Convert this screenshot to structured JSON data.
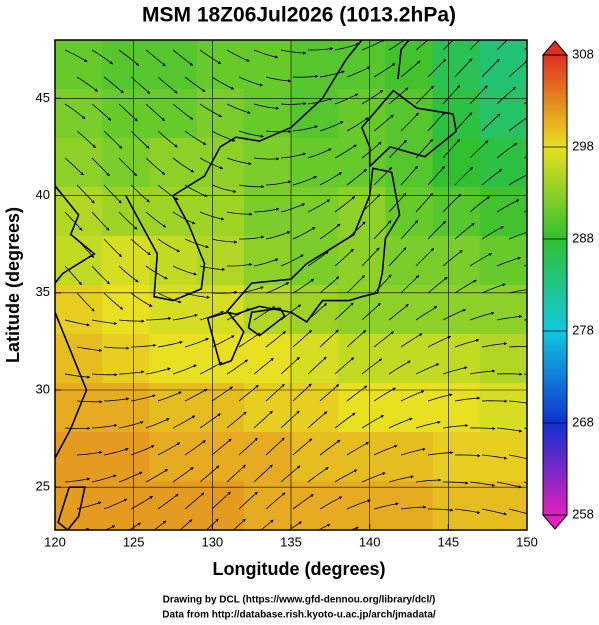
{
  "chart_data": {
    "type": "heatmap",
    "title": "MSM 18Z06Jul2026 (1013.2hPa)",
    "x_label": "Longitude (degrees)",
    "y_label": "Latitude  (degrees)",
    "xlim": [
      120,
      150
    ],
    "ylim": [
      22.8,
      48
    ],
    "xticks": [
      120,
      125,
      130,
      135,
      140,
      145,
      150
    ],
    "yticks": [
      25,
      30,
      35,
      40,
      45
    ],
    "grid": true,
    "field": [
      [
        291,
        290,
        290,
        291,
        291,
        290,
        290,
        289,
        286,
        284
      ],
      [
        292,
        291,
        291,
        292,
        291,
        290,
        291,
        290,
        287,
        285
      ],
      [
        293,
        292,
        293,
        293,
        292,
        291,
        291,
        290,
        288,
        287
      ],
      [
        295,
        294,
        294,
        294,
        292,
        292,
        293,
        291,
        290,
        289
      ],
      [
        296,
        297,
        296,
        295,
        293,
        292,
        293,
        292,
        292,
        291
      ],
      [
        299,
        298,
        297,
        297,
        295,
        294,
        293,
        293,
        293,
        293
      ],
      [
        300,
        299,
        298,
        298,
        298,
        297,
        296,
        296,
        296,
        295
      ],
      [
        301,
        301,
        300,
        300,
        299,
        299,
        298,
        298,
        298,
        297
      ],
      [
        302,
        302,
        301,
        301,
        301,
        300,
        300,
        300,
        299,
        299
      ],
      [
        302,
        302,
        302,
        302,
        301,
        301,
        301,
        301,
        300,
        300
      ]
    ],
    "colorbar": {
      "range": [
        258,
        308
      ],
      "ticks": [
        258,
        268,
        278,
        288,
        298,
        308
      ],
      "colors": [
        "#e020c0",
        "#1030d0",
        "#10c8e0",
        "#30c030",
        "#e8e020",
        "#e03020"
      ]
    },
    "credits": [
      "Drawing by DCL (https://www.gfd-dennou.org/library/dcl/)",
      "Data from http://database.rish.kyoto-u.ac.jp/arch/jmadata/"
    ]
  }
}
